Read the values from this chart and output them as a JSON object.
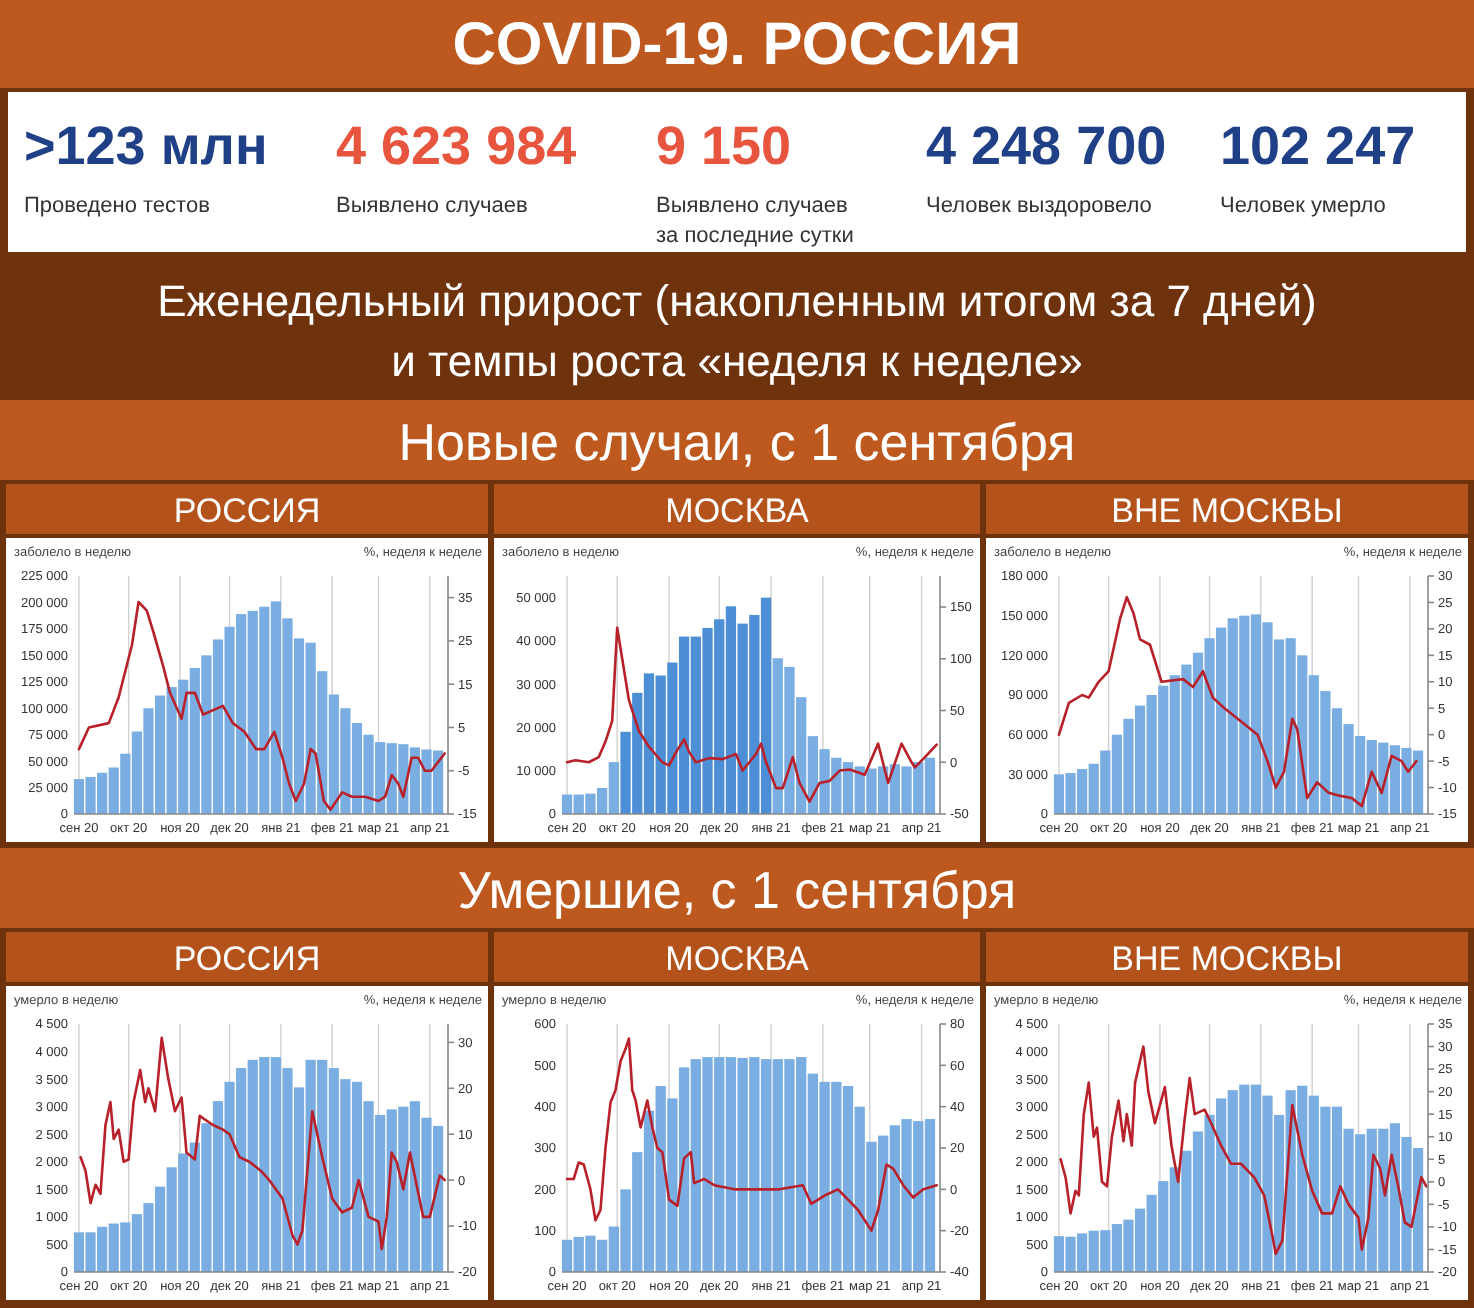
{
  "chart_data": [
    {
      "type": "other",
      "title": "COVID-19. РОССИЯ",
      "subtitle": "Еженедельный прирост (накопленным итогом за 7 дней) и темпы роста «неделя к неделе»",
      "annotations": [
        ">123 млн",
        "Проведено тестов",
        "4 623 984",
        "Выявлено случаев",
        "9 150",
        "Выявлено случаев за последние сутки",
        "4 248 700",
        "Человек выздоровело",
        "102 247",
        "Человек умерло"
      ]
    },
    {
      "type": "other",
      "title": "Новые случаи, с 1 сентября"
    },
    {
      "type": "bar",
      "title": "РОССИЯ",
      "ylabel": "заболело  в неделю",
      "y2label": "%, неделя к неделе",
      "grid": "x",
      "x": [
        "2020-09-01",
        "2020-09-08",
        "2020-09-15",
        "2020-09-22",
        "2020-09-29",
        "2020-10-06",
        "2020-10-13",
        "2020-10-20",
        "2020-10-27",
        "2020-11-03",
        "2020-11-10",
        "2020-11-17",
        "2020-11-24",
        "2020-12-01",
        "2020-12-08",
        "2020-12-15",
        "2020-12-22",
        "2020-12-29",
        "2021-01-05",
        "2021-01-12",
        "2021-01-19",
        "2021-01-26",
        "2021-02-02",
        "2021-02-09",
        "2021-02-16",
        "2021-02-23",
        "2021-03-02",
        "2021-03-09",
        "2021-03-16",
        "2021-03-23",
        "2021-03-30",
        "2021-04-06"
      ],
      "xlim": [
        "2020-08-29",
        "2021-04-12"
      ],
      "xticks": [
        {
          "value": "2020-09-01",
          "label": "сен 20"
        },
        {
          "value": "2020-10-01",
          "label": "окт 20"
        },
        {
          "value": "2020-11-01",
          "label": "ноя 20"
        },
        {
          "value": "2020-12-01",
          "label": "дек 20"
        },
        {
          "value": "2021-01-01",
          "label": "янв 21"
        },
        {
          "value": "2021-02-01",
          "label": "фев 21"
        },
        {
          "value": "2021-03-01",
          "label": "мар 21"
        },
        {
          "value": "2021-04-01",
          "label": "апр 21"
        }
      ],
      "ylim": [
        0,
        225000
      ],
      "yticks": [
        0,
        {
          "value": 25000,
          "label": "25 000"
        },
        {
          "value": 50000,
          "label": "50 000"
        },
        {
          "value": 75000,
          "label": "75 000"
        },
        {
          "value": 100000,
          "label": "100 000"
        },
        {
          "value": 125000,
          "label": "125 000"
        },
        {
          "value": 150000,
          "label": "150 000"
        },
        {
          "value": 175000,
          "label": "175 000"
        },
        {
          "value": 200000,
          "label": "200 000"
        },
        {
          "value": 225000,
          "label": "225 000"
        }
      ],
      "y2lim": [
        -15,
        40
      ],
      "y2ticks": [
        -15,
        -5,
        5,
        15,
        25,
        35
      ],
      "series": [
        {
          "type": "bar",
          "color": "#7aaee2",
          "values": [
            33000,
            35000,
            39000,
            44000,
            57000,
            78000,
            100000,
            112000,
            120000,
            127000,
            138000,
            150000,
            165000,
            177000,
            189000,
            192000,
            196000,
            201000,
            185000,
            166000,
            162000,
            135000,
            113000,
            100000,
            86000,
            75000,
            68000,
            67000,
            66000,
            63000,
            61000,
            60000
          ]
        },
        {
          "type": "line",
          "axis": "y2",
          "color": "#b8202a",
          "x": [
            "2020-09-01",
            "2020-09-07",
            "2020-09-19",
            "2020-09-25",
            "2020-10-03",
            "2020-10-07",
            "2020-10-12",
            "2020-10-16",
            "2020-10-22",
            "2020-10-26",
            "2020-11-02",
            "2020-11-05",
            "2020-11-10",
            "2020-11-15",
            "2020-11-27",
            "2020-12-03",
            "2020-12-10",
            "2020-12-17",
            "2020-12-22",
            "2020-12-28",
            "2021-01-02",
            "2021-01-06",
            "2021-01-10",
            "2021-01-15",
            "2021-01-19",
            "2021-01-22",
            "2021-01-27",
            "2021-01-31",
            "2021-02-07",
            "2021-02-13",
            "2021-02-21",
            "2021-03-01",
            "2021-03-05",
            "2021-03-09",
            "2021-03-13",
            "2021-03-16",
            "2021-03-21",
            "2021-03-25",
            "2021-03-29",
            "2021-04-02",
            "2021-04-10"
          ],
          "values": [
            0,
            5,
            6,
            12,
            24,
            34,
            32,
            27,
            19,
            13,
            7,
            13,
            13,
            8,
            10,
            6,
            4,
            0,
            0,
            4,
            -2,
            -8,
            -12,
            -8,
            0,
            -1,
            -12,
            -14,
            -10,
            -11,
            -11,
            -12,
            -11,
            -6,
            -8,
            -11,
            -2,
            -2,
            -5,
            -5,
            -1
          ]
        }
      ]
    },
    {
      "type": "bar",
      "title": "МОСКВА",
      "ylabel": "заболело в неделю",
      "y2label": "%, неделя к неделе",
      "grid": "x",
      "x": [
        "2020-09-01",
        "2020-09-08",
        "2020-09-15",
        "2020-09-22",
        "2020-09-29",
        "2020-10-06",
        "2020-10-13",
        "2020-10-20",
        "2020-10-27",
        "2020-11-03",
        "2020-11-10",
        "2020-11-17",
        "2020-11-24",
        "2020-12-01",
        "2020-12-08",
        "2020-12-15",
        "2020-12-22",
        "2020-12-29",
        "2021-01-05",
        "2021-01-12",
        "2021-01-19",
        "2021-01-26",
        "2021-02-02",
        "2021-02-09",
        "2021-02-16",
        "2021-02-23",
        "2021-03-02",
        "2021-03-09",
        "2021-03-16",
        "2021-03-23",
        "2021-03-30",
        "2021-04-06"
      ],
      "xlim": [
        "2020-08-29",
        "2021-04-12"
      ],
      "xticks": [
        {
          "value": "2020-09-01",
          "label": "сен 20"
        },
        {
          "value": "2020-10-01",
          "label": "окт 20"
        },
        {
          "value": "2020-11-01",
          "label": "ноя 20"
        },
        {
          "value": "2020-12-01",
          "label": "дек 20"
        },
        {
          "value": "2021-01-01",
          "label": "янв 21"
        },
        {
          "value": "2021-02-01",
          "label": "фев 21"
        },
        {
          "value": "2021-03-01",
          "label": "мар 21"
        },
        {
          "value": "2021-04-01",
          "label": "апр 21"
        }
      ],
      "ylim": [
        0,
        55000
      ],
      "yticks": [
        0,
        {
          "value": 10000,
          "label": "10 000"
        },
        {
          "value": 20000,
          "label": "20 000"
        },
        {
          "value": 30000,
          "label": "30 000"
        },
        {
          "value": 40000,
          "label": "40 000"
        },
        {
          "value": 50000,
          "label": "50 000"
        }
      ],
      "y2lim": [
        -50,
        180
      ],
      "y2ticks": [
        -50,
        0,
        50,
        100,
        150
      ],
      "series": [
        {
          "type": "bar",
          "colors": [
            "#7aaee2",
            "#7aaee2",
            "#7aaee2",
            "#7aaee2",
            "#7aaee2",
            "#4d8fd6",
            "#4d8fd6",
            "#4d8fd6",
            "#4d8fd6",
            "#4d8fd6",
            "#4d8fd6",
            "#4d8fd6",
            "#4d8fd6",
            "#4d8fd6",
            "#4d8fd6",
            "#4d8fd6",
            "#4d8fd6",
            "#4d8fd6",
            "#7aaee2",
            "#7aaee2",
            "#7aaee2",
            "#7aaee2",
            "#7aaee2",
            "#7aaee2",
            "#7aaee2",
            "#7aaee2",
            "#7aaee2",
            "#7aaee2",
            "#7aaee2",
            "#7aaee2",
            "#7aaee2",
            "#7aaee2"
          ],
          "values": [
            4500,
            4500,
            4700,
            6000,
            12000,
            19000,
            28000,
            32500,
            32000,
            35000,
            41000,
            41000,
            43000,
            45000,
            48000,
            44000,
            46000,
            50000,
            36000,
            34000,
            27000,
            18000,
            15000,
            13000,
            12000,
            11000,
            10500,
            11000,
            11500,
            11000,
            12000,
            13000
          ]
        },
        {
          "type": "line",
          "axis": "y2",
          "color": "#b8202a",
          "x": [
            "2020-09-01",
            "2020-09-06",
            "2020-09-14",
            "2020-09-20",
            "2020-09-24",
            "2020-09-28",
            "2020-10-01",
            "2020-10-04",
            "2020-10-08",
            "2020-10-14",
            "2020-10-20",
            "2020-10-28",
            "2020-11-01",
            "2020-11-06",
            "2020-11-10",
            "2020-11-13",
            "2020-11-17",
            "2020-11-25",
            "2020-12-03",
            "2020-12-11",
            "2020-12-15",
            "2020-12-23",
            "2020-12-26",
            "2020-12-29",
            "2021-01-04",
            "2021-01-08",
            "2021-01-14",
            "2021-01-18",
            "2021-01-24",
            "2021-01-30",
            "2021-02-05",
            "2021-02-11",
            "2021-02-17",
            "2021-02-26",
            "2021-03-06",
            "2021-03-12",
            "2021-03-20",
            "2021-03-26",
            "2021-03-28",
            "2021-04-03",
            "2021-04-10"
          ],
          "values": [
            0,
            2,
            0,
            5,
            20,
            40,
            130,
            100,
            60,
            30,
            15,
            0,
            -3,
            12,
            22,
            10,
            0,
            4,
            3,
            8,
            -8,
            8,
            18,
            0,
            -25,
            -25,
            5,
            -20,
            -38,
            -20,
            -18,
            -8,
            -7,
            -12,
            18,
            -20,
            18,
            0,
            -5,
            5,
            17
          ]
        }
      ]
    },
    {
      "type": "bar",
      "title": "ВНЕ МОСКВЫ",
      "ylabel": "заболело в неделю",
      "y2label": "%, неделя к неделе",
      "grid": "x",
      "x": [
        "2020-09-01",
        "2020-09-08",
        "2020-09-15",
        "2020-09-22",
        "2020-09-29",
        "2020-10-06",
        "2020-10-13",
        "2020-10-20",
        "2020-10-27",
        "2020-11-03",
        "2020-11-10",
        "2020-11-17",
        "2020-11-24",
        "2020-12-01",
        "2020-12-08",
        "2020-12-15",
        "2020-12-22",
        "2020-12-29",
        "2021-01-05",
        "2021-01-12",
        "2021-01-19",
        "2021-01-26",
        "2021-02-02",
        "2021-02-09",
        "2021-02-16",
        "2021-02-23",
        "2021-03-02",
        "2021-03-09",
        "2021-03-16",
        "2021-03-23",
        "2021-03-30",
        "2021-04-06"
      ],
      "xlim": [
        "2020-08-29",
        "2021-04-12"
      ],
      "xticks": [
        {
          "value": "2020-09-01",
          "label": "сен 20"
        },
        {
          "value": "2020-10-01",
          "label": "окт 20"
        },
        {
          "value": "2020-11-01",
          "label": "ноя 20"
        },
        {
          "value": "2020-12-01",
          "label": "дек 20"
        },
        {
          "value": "2021-01-01",
          "label": "янв 21"
        },
        {
          "value": "2021-02-01",
          "label": "фев 21"
        },
        {
          "value": "2021-03-01",
          "label": "мар 21"
        },
        {
          "value": "2021-04-01",
          "label": "апр 21"
        }
      ],
      "ylim": [
        0,
        180000
      ],
      "yticks": [
        0,
        {
          "value": 30000,
          "label": "30 000"
        },
        {
          "value": 60000,
          "label": "60 000"
        },
        {
          "value": 90000,
          "label": "90 000"
        },
        {
          "value": 120000,
          "label": "120 000"
        },
        {
          "value": 150000,
          "label": "150 000"
        },
        {
          "value": 180000,
          "label": "180 000"
        }
      ],
      "y2lim": [
        -15,
        30
      ],
      "y2ticks": [
        -15,
        -10,
        -5,
        0,
        5,
        10,
        15,
        20,
        25,
        30
      ],
      "series": [
        {
          "type": "bar",
          "color": "#7aaee2",
          "values": [
            30000,
            31000,
            34000,
            38000,
            48000,
            60000,
            72000,
            82000,
            90000,
            97000,
            105000,
            113000,
            122000,
            133000,
            141000,
            148000,
            150000,
            151000,
            145000,
            132000,
            133000,
            120000,
            105000,
            93000,
            80000,
            68000,
            59000,
            56000,
            54000,
            52000,
            50000,
            48000
          ]
        },
        {
          "type": "line",
          "axis": "y2",
          "color": "#b8202a",
          "x": [
            "2020-09-01",
            "2020-09-07",
            "2020-09-15",
            "2020-09-19",
            "2020-09-25",
            "2020-10-01",
            "2020-10-08",
            "2020-10-12",
            "2020-10-16",
            "2020-10-20",
            "2020-10-26",
            "2020-11-02",
            "2020-11-15",
            "2020-11-21",
            "2020-11-27",
            "2020-12-03",
            "2020-12-10",
            "2020-12-18",
            "2020-12-30",
            "2021-01-05",
            "2021-01-10",
            "2021-01-15",
            "2021-01-20",
            "2021-01-23",
            "2021-01-29",
            "2021-02-04",
            "2021-02-11",
            "2021-02-17",
            "2021-02-25",
            "2021-03-03",
            "2021-03-09",
            "2021-03-15",
            "2021-03-21",
            "2021-03-27",
            "2021-03-31",
            "2021-04-05"
          ],
          "values": [
            0,
            6,
            7.5,
            7,
            10,
            12,
            22,
            26,
            23,
            18,
            17,
            10,
            10.5,
            9,
            12,
            7,
            5,
            3,
            0,
            -5,
            -10,
            -7,
            3,
            1,
            -12,
            -9,
            -11,
            -11.5,
            -12,
            -13.5,
            -7,
            -11,
            -4,
            -5,
            -7,
            -5
          ]
        }
      ]
    },
    {
      "type": "other",
      "title": "Умершие, с 1 сентября"
    },
    {
      "type": "bar",
      "title": "РОССИЯ",
      "ylabel": "умерло в неделю",
      "y2label": "%, неделя к неделе",
      "grid": "x",
      "x": [
        "2020-09-01",
        "2020-09-08",
        "2020-09-15",
        "2020-09-22",
        "2020-09-29",
        "2020-10-06",
        "2020-10-13",
        "2020-10-20",
        "2020-10-27",
        "2020-11-03",
        "2020-11-10",
        "2020-11-17",
        "2020-11-24",
        "2020-12-01",
        "2020-12-08",
        "2020-12-15",
        "2020-12-22",
        "2020-12-29",
        "2021-01-05",
        "2021-01-12",
        "2021-01-19",
        "2021-01-26",
        "2021-02-02",
        "2021-02-09",
        "2021-02-16",
        "2021-02-23",
        "2021-03-02",
        "2021-03-09",
        "2021-03-16",
        "2021-03-23",
        "2021-03-30",
        "2021-04-06"
      ],
      "xlim": [
        "2020-08-29",
        "2021-04-12"
      ],
      "xticks": [
        {
          "value": "2020-09-01",
          "label": "сен 20"
        },
        {
          "value": "2020-10-01",
          "label": "окт 20"
        },
        {
          "value": "2020-11-01",
          "label": "ноя 20"
        },
        {
          "value": "2020-12-01",
          "label": "дек 20"
        },
        {
          "value": "2021-01-01",
          "label": "янв 21"
        },
        {
          "value": "2021-02-01",
          "label": "фев 21"
        },
        {
          "value": "2021-03-01",
          "label": "мар 21"
        },
        {
          "value": "2021-04-01",
          "label": "апр 21"
        }
      ],
      "ylim": [
        0,
        4500
      ],
      "yticks": [
        0,
        500,
        {
          "value": 1000,
          "label": "1 000"
        },
        {
          "value": 1500,
          "label": "1 500"
        },
        {
          "value": 2000,
          "label": "2 000"
        },
        {
          "value": 2500,
          "label": "2 500"
        },
        {
          "value": 3000,
          "label": "3 000"
        },
        {
          "value": 3500,
          "label": "3 500"
        },
        {
          "value": 4000,
          "label": "4 000"
        },
        {
          "value": 4500,
          "label": "4 500"
        }
      ],
      "y2lim": [
        -20,
        34
      ],
      "y2ticks": [
        -20,
        -10,
        0,
        10,
        20,
        30
      ],
      "series": [
        {
          "type": "bar",
          "color": "#7aaee2",
          "values": [
            720,
            720,
            820,
            880,
            900,
            1050,
            1250,
            1550,
            1900,
            2150,
            2350,
            2700,
            3100,
            3450,
            3700,
            3850,
            3900,
            3900,
            3700,
            3350,
            3850,
            3850,
            3700,
            3500,
            3450,
            3100,
            2850,
            2950,
            3000,
            3100,
            2800,
            2650
          ]
        },
        {
          "type": "line",
          "axis": "y2",
          "color": "#b8202a",
          "x": [
            "2020-09-02",
            "2020-09-05",
            "2020-09-08",
            "2020-09-11",
            "2020-09-14",
            "2020-09-17",
            "2020-09-20",
            "2020-09-22",
            "2020-09-25",
            "2020-09-28",
            "2020-10-01",
            "2020-10-04",
            "2020-10-08",
            "2020-10-11",
            "2020-10-13",
            "2020-10-17",
            "2020-10-21",
            "2020-10-25",
            "2020-10-29",
            "2020-11-02",
            "2020-11-05",
            "2020-11-10",
            "2020-11-13",
            "2020-11-17",
            "2020-11-21",
            "2020-11-27",
            "2020-12-01",
            "2020-12-07",
            "2020-12-13",
            "2020-12-20",
            "2020-12-25",
            "2021-01-02",
            "2021-01-08",
            "2021-01-11",
            "2021-01-14",
            "2021-01-20",
            "2021-01-26",
            "2021-02-01",
            "2021-02-07",
            "2021-02-13",
            "2021-02-17",
            "2021-02-23",
            "2021-03-01",
            "2021-03-03",
            "2021-03-06",
            "2021-03-09",
            "2021-03-12",
            "2021-03-16",
            "2021-03-20",
            "2021-03-24",
            "2021-03-28",
            "2021-04-01",
            "2021-04-07",
            "2021-04-10"
          ],
          "values": [
            5,
            2,
            -5,
            -1,
            -3,
            12,
            17,
            9,
            11,
            4,
            4.5,
            17,
            24,
            17,
            20,
            15,
            31,
            22,
            15,
            18,
            6,
            4.5,
            14,
            13,
            12,
            11,
            10,
            5,
            4,
            2,
            0,
            -4,
            -12,
            -14,
            -11,
            15,
            5,
            -4,
            -7,
            -6,
            0,
            -8,
            -9,
            -15,
            -8,
            6,
            4,
            -2,
            6,
            -1,
            -8,
            -8,
            1,
            0
          ]
        }
      ]
    },
    {
      "type": "bar",
      "title": "МОСКВА",
      "ylabel": "умерло в неделю",
      "y2label": "%, неделя к неделе",
      "grid": "x",
      "x": [
        "2020-09-01",
        "2020-09-08",
        "2020-09-15",
        "2020-09-22",
        "2020-09-29",
        "2020-10-06",
        "2020-10-13",
        "2020-10-20",
        "2020-10-27",
        "2020-11-03",
        "2020-11-10",
        "2020-11-17",
        "2020-11-24",
        "2020-12-01",
        "2020-12-08",
        "2020-12-15",
        "2020-12-22",
        "2020-12-29",
        "2021-01-05",
        "2021-01-12",
        "2021-01-19",
        "2021-01-26",
        "2021-02-02",
        "2021-02-09",
        "2021-02-16",
        "2021-02-23",
        "2021-03-02",
        "2021-03-09",
        "2021-03-16",
        "2021-03-23",
        "2021-03-30",
        "2021-04-06"
      ],
      "xlim": [
        "2020-08-29",
        "2021-04-12"
      ],
      "xticks": [
        {
          "value": "2020-09-01",
          "label": "сен 20"
        },
        {
          "value": "2020-10-01",
          "label": "окт 20"
        },
        {
          "value": "2020-11-01",
          "label": "ноя 20"
        },
        {
          "value": "2020-12-01",
          "label": "дек 20"
        },
        {
          "value": "2021-01-01",
          "label": "янв 21"
        },
        {
          "value": "2021-02-01",
          "label": "фев 21"
        },
        {
          "value": "2021-03-01",
          "label": "мар 21"
        },
        {
          "value": "2021-04-01",
          "label": "апр 21"
        }
      ],
      "ylim": [
        0,
        600
      ],
      "yticks": [
        0,
        100,
        200,
        300,
        400,
        500,
        600
      ],
      "y2lim": [
        -40,
        80
      ],
      "y2ticks": [
        -40,
        -20,
        0,
        20,
        40,
        60,
        80
      ],
      "series": [
        {
          "type": "bar",
          "color": "#7aaee2",
          "values": [
            78,
            85,
            88,
            78,
            110,
            200,
            290,
            390,
            450,
            420,
            495,
            515,
            520,
            520,
            520,
            518,
            520,
            515,
            515,
            515,
            520,
            480,
            460,
            460,
            450,
            400,
            315,
            330,
            355,
            370,
            365,
            370
          ]
        },
        {
          "type": "line",
          "axis": "y2",
          "color": "#b8202a",
          "x": [
            "2020-09-01",
            "2020-09-05",
            "2020-09-08",
            "2020-09-11",
            "2020-09-15",
            "2020-09-18",
            "2020-09-21",
            "2020-09-24",
            "2020-09-27",
            "2020-09-30",
            "2020-10-03",
            "2020-10-06",
            "2020-10-08",
            "2020-10-10",
            "2020-10-12",
            "2020-10-15",
            "2020-10-19",
            "2020-10-22",
            "2020-10-25",
            "2020-10-28",
            "2020-11-01",
            "2020-11-06",
            "2020-11-10",
            "2020-11-14",
            "2020-11-16",
            "2020-11-22",
            "2020-11-28",
            "2020-12-10",
            "2020-12-21",
            "2020-12-29",
            "2021-01-06",
            "2021-01-20",
            "2021-01-25",
            "2021-02-02",
            "2021-02-10",
            "2021-02-16",
            "2021-02-22",
            "2021-03-02",
            "2021-03-06",
            "2021-03-11",
            "2021-03-15",
            "2021-03-21",
            "2021-03-27",
            "2021-04-02",
            "2021-04-10"
          ],
          "values": [
            5,
            5,
            13,
            12,
            0,
            -15,
            -10,
            20,
            42,
            48,
            62,
            68,
            73,
            48,
            43,
            30,
            43,
            30,
            20,
            18,
            -5,
            -8,
            15,
            18,
            3,
            5,
            2,
            0,
            0,
            0,
            0,
            2,
            -7,
            -3,
            0,
            -5,
            -10,
            -20,
            -10,
            12,
            10,
            2,
            -4,
            0,
            2
          ]
        }
      ]
    },
    {
      "type": "bar",
      "title": "ВНЕ МОСКВЫ",
      "ylabel": "умерло в неделю",
      "y2label": "%, неделя к неделе",
      "grid": "x",
      "x": [
        "2020-09-01",
        "2020-09-08",
        "2020-09-15",
        "2020-09-22",
        "2020-09-29",
        "2020-10-06",
        "2020-10-13",
        "2020-10-20",
        "2020-10-27",
        "2020-11-03",
        "2020-11-10",
        "2020-11-17",
        "2020-11-24",
        "2020-12-01",
        "2020-12-08",
        "2020-12-15",
        "2020-12-22",
        "2020-12-29",
        "2021-01-05",
        "2021-01-12",
        "2021-01-19",
        "2021-01-26",
        "2021-02-02",
        "2021-02-09",
        "2021-02-16",
        "2021-02-23",
        "2021-03-02",
        "2021-03-09",
        "2021-03-16",
        "2021-03-23",
        "2021-03-30",
        "2021-04-06"
      ],
      "xlim": [
        "2020-08-29",
        "2021-04-12"
      ],
      "xticks": [
        {
          "value": "2020-09-01",
          "label": "сен 20"
        },
        {
          "value": "2020-10-01",
          "label": "окт 20"
        },
        {
          "value": "2020-11-01",
          "label": "ноя 20"
        },
        {
          "value": "2020-12-01",
          "label": "дек 20"
        },
        {
          "value": "2021-01-01",
          "label": "янв 21"
        },
        {
          "value": "2021-02-01",
          "label": "фев 21"
        },
        {
          "value": "2021-03-01",
          "label": "мар 21"
        },
        {
          "value": "2021-04-01",
          "label": "апр 21"
        }
      ],
      "ylim": [
        0,
        4500
      ],
      "yticks": [
        0,
        500,
        {
          "value": 1000,
          "label": "1 000"
        },
        {
          "value": 1500,
          "label": "1 500"
        },
        {
          "value": 2000,
          "label": "2 000"
        },
        {
          "value": 2500,
          "label": "2 500"
        },
        {
          "value": 3000,
          "label": "3 000"
        },
        {
          "value": 3500,
          "label": "3 500"
        },
        {
          "value": 4000,
          "label": "4 000"
        },
        {
          "value": 4500,
          "label": "4 500"
        }
      ],
      "y2lim": [
        -20,
        35
      ],
      "y2ticks": [
        -20,
        -15,
        -10,
        -5,
        0,
        5,
        10,
        15,
        20,
        25,
        30,
        35
      ],
      "series": [
        {
          "type": "bar",
          "color": "#7aaee2",
          "values": [
            650,
            640,
            700,
            750,
            760,
            870,
            950,
            1150,
            1400,
            1650,
            1900,
            2200,
            2550,
            2850,
            3150,
            3300,
            3400,
            3400,
            3200,
            2850,
            3300,
            3380,
            3200,
            3000,
            3000,
            2600,
            2500,
            2600,
            2600,
            2700,
            2450,
            2250
          ]
        },
        {
          "type": "line",
          "axis": "y2",
          "color": "#b8202a",
          "x": [
            "2020-09-02",
            "2020-09-05",
            "2020-09-08",
            "2020-09-11",
            "2020-09-13",
            "2020-09-16",
            "2020-09-19",
            "2020-09-22",
            "2020-09-24",
            "2020-09-27",
            "2020-09-30",
            "2020-10-03",
            "2020-10-07",
            "2020-10-10",
            "2020-10-12",
            "2020-10-15",
            "2020-10-17",
            "2020-10-22",
            "2020-10-25",
            "2020-10-29",
            "2020-11-04",
            "2020-11-08",
            "2020-11-12",
            "2020-11-16",
            "2020-11-19",
            "2020-11-22",
            "2020-11-28",
            "2020-12-02",
            "2020-12-08",
            "2020-12-14",
            "2020-12-20",
            "2020-12-28",
            "2021-01-03",
            "2021-01-08",
            "2021-01-10",
            "2021-01-14",
            "2021-01-20",
            "2021-01-26",
            "2021-02-01",
            "2021-02-07",
            "2021-02-13",
            "2021-02-18",
            "2021-02-23",
            "2021-03-01",
            "2021-03-03",
            "2021-03-07",
            "2021-03-10",
            "2021-03-14",
            "2021-03-17",
            "2021-03-21",
            "2021-03-25",
            "2021-03-29",
            "2021-04-02",
            "2021-04-08",
            "2021-04-11"
          ],
          "values": [
            5,
            1,
            -7,
            -2,
            -3,
            15,
            22,
            10,
            12,
            0,
            -1,
            10,
            18,
            9,
            15,
            8,
            22,
            30,
            20,
            13,
            21,
            8,
            0,
            14,
            23,
            15,
            16,
            13,
            8,
            4,
            4,
            1,
            -3,
            -12,
            -16,
            -13,
            17,
            6,
            -2,
            -7,
            -7,
            -1,
            -5,
            -8,
            -15,
            -8,
            6,
            3,
            -3,
            6,
            -1,
            -9,
            -10,
            1,
            -1
          ]
        }
      ]
    }
  ]
}
